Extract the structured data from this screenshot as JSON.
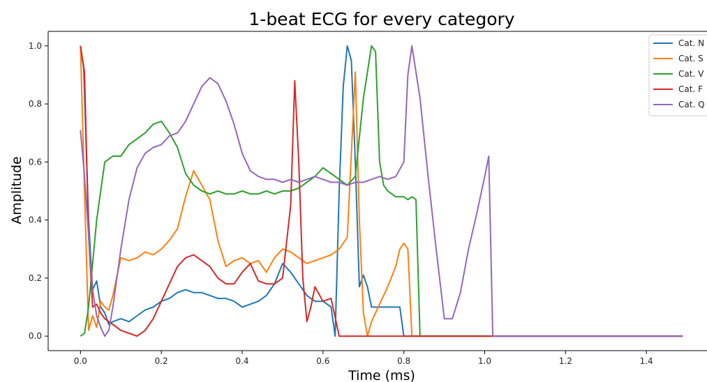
{
  "chart_data": {
    "type": "line",
    "title": "1-beat ECG for every category",
    "xlabel": "Time (ms)",
    "ylabel": "Amplitude",
    "xlim": [
      -0.08,
      1.55
    ],
    "ylim": [
      -0.05,
      1.05
    ],
    "xticks": [
      "0.0",
      "0.2",
      "0.4",
      "0.6",
      "0.8",
      "1.0",
      "1.2",
      "1.4"
    ],
    "yticks": [
      "0.0",
      "0.2",
      "0.4",
      "0.6",
      "0.8",
      "1.0"
    ],
    "grid": false,
    "legend_position": "top-right",
    "series": [
      {
        "name": "Cat. N",
        "color": "#1f77b4",
        "x": [
          0.0,
          0.008,
          0.02,
          0.03,
          0.04,
          0.05,
          0.06,
          0.07,
          0.08,
          0.1,
          0.12,
          0.14,
          0.16,
          0.18,
          0.2,
          0.22,
          0.24,
          0.26,
          0.28,
          0.3,
          0.32,
          0.34,
          0.36,
          0.38,
          0.4,
          0.42,
          0.44,
          0.46,
          0.48,
          0.5,
          0.52,
          0.54,
          0.56,
          0.58,
          0.6,
          0.62,
          0.63,
          0.64,
          0.65,
          0.66,
          0.67,
          0.68,
          0.69,
          0.7,
          0.71,
          0.72,
          0.74,
          0.76,
          0.78,
          0.79,
          0.8,
          0.81,
          1.0,
          1.2,
          1.49
        ],
        "y": [
          1.0,
          0.92,
          0.4,
          0.16,
          0.19,
          0.1,
          0.08,
          0.04,
          0.05,
          0.06,
          0.05,
          0.07,
          0.09,
          0.1,
          0.12,
          0.13,
          0.15,
          0.16,
          0.15,
          0.15,
          0.14,
          0.13,
          0.13,
          0.12,
          0.1,
          0.11,
          0.12,
          0.14,
          0.18,
          0.25,
          0.22,
          0.18,
          0.14,
          0.12,
          0.12,
          0.1,
          0.0,
          0.5,
          0.86,
          1.0,
          0.95,
          0.6,
          0.17,
          0.21,
          0.17,
          0.1,
          0.1,
          0.1,
          0.1,
          0.1,
          0.0,
          0.0,
          0.0,
          0.0,
          0.0
        ]
      },
      {
        "name": "Cat. S",
        "color": "#ff7f0e",
        "x": [
          0.0,
          0.01,
          0.02,
          0.03,
          0.04,
          0.05,
          0.06,
          0.07,
          0.08,
          0.1,
          0.12,
          0.14,
          0.16,
          0.18,
          0.2,
          0.22,
          0.24,
          0.26,
          0.28,
          0.3,
          0.32,
          0.34,
          0.36,
          0.38,
          0.4,
          0.42,
          0.44,
          0.46,
          0.48,
          0.5,
          0.52,
          0.54,
          0.56,
          0.58,
          0.6,
          0.62,
          0.64,
          0.66,
          0.68,
          0.69,
          0.7,
          0.71,
          0.72,
          0.74,
          0.76,
          0.78,
          0.79,
          0.8,
          0.81,
          0.82,
          1.0,
          1.2,
          1.49
        ],
        "y": [
          1.0,
          0.5,
          0.02,
          0.07,
          0.03,
          0.12,
          0.1,
          0.09,
          0.14,
          0.27,
          0.26,
          0.27,
          0.29,
          0.28,
          0.3,
          0.33,
          0.37,
          0.48,
          0.57,
          0.52,
          0.47,
          0.33,
          0.24,
          0.26,
          0.27,
          0.25,
          0.26,
          0.22,
          0.27,
          0.3,
          0.29,
          0.27,
          0.25,
          0.26,
          0.27,
          0.28,
          0.3,
          0.34,
          0.91,
          0.4,
          0.08,
          0.0,
          0.05,
          0.11,
          0.17,
          0.24,
          0.3,
          0.32,
          0.3,
          0.0,
          0.0,
          0.0,
          0.0
        ]
      },
      {
        "name": "Cat. V",
        "color": "#2ca02c",
        "x": [
          0.0,
          0.01,
          0.02,
          0.04,
          0.06,
          0.08,
          0.1,
          0.12,
          0.14,
          0.16,
          0.18,
          0.2,
          0.22,
          0.24,
          0.26,
          0.28,
          0.3,
          0.32,
          0.34,
          0.36,
          0.38,
          0.4,
          0.42,
          0.44,
          0.46,
          0.48,
          0.5,
          0.52,
          0.54,
          0.56,
          0.58,
          0.6,
          0.62,
          0.64,
          0.66,
          0.68,
          0.7,
          0.72,
          0.73,
          0.74,
          0.75,
          0.76,
          0.78,
          0.8,
          0.81,
          0.82,
          0.83,
          0.84,
          1.0,
          1.2,
          1.49
        ],
        "y": [
          0.0,
          0.01,
          0.1,
          0.4,
          0.6,
          0.62,
          0.62,
          0.66,
          0.68,
          0.7,
          0.73,
          0.74,
          0.7,
          0.65,
          0.56,
          0.52,
          0.5,
          0.49,
          0.5,
          0.49,
          0.49,
          0.5,
          0.49,
          0.49,
          0.5,
          0.49,
          0.5,
          0.5,
          0.51,
          0.53,
          0.55,
          0.58,
          0.56,
          0.54,
          0.52,
          0.55,
          0.82,
          1.0,
          0.98,
          0.6,
          0.52,
          0.5,
          0.48,
          0.48,
          0.47,
          0.48,
          0.47,
          0.0,
          0.0,
          0.0,
          0.0
        ]
      },
      {
        "name": "Cat. F",
        "color": "#d62728",
        "x": [
          0.0,
          0.01,
          0.02,
          0.03,
          0.04,
          0.05,
          0.06,
          0.07,
          0.08,
          0.1,
          0.12,
          0.14,
          0.16,
          0.18,
          0.2,
          0.22,
          0.24,
          0.26,
          0.28,
          0.3,
          0.32,
          0.34,
          0.36,
          0.38,
          0.4,
          0.42,
          0.44,
          0.46,
          0.48,
          0.5,
          0.52,
          0.53,
          0.54,
          0.55,
          0.56,
          0.57,
          0.58,
          0.6,
          0.62,
          0.64,
          0.8,
          1.0,
          1.2,
          1.49
        ],
        "y": [
          1.0,
          0.91,
          0.35,
          0.1,
          0.11,
          0.08,
          0.06,
          0.05,
          0.04,
          0.02,
          0.01,
          0.0,
          0.02,
          0.06,
          0.12,
          0.18,
          0.24,
          0.27,
          0.28,
          0.26,
          0.24,
          0.2,
          0.18,
          0.18,
          0.22,
          0.25,
          0.19,
          0.18,
          0.18,
          0.2,
          0.45,
          0.88,
          0.6,
          0.2,
          0.05,
          0.1,
          0.17,
          0.12,
          0.13,
          0.0,
          0.0,
          0.0,
          0.0,
          0.0
        ]
      },
      {
        "name": "Cat. Q",
        "color": "#9467bd",
        "x": [
          0.0,
          0.01,
          0.02,
          0.03,
          0.04,
          0.05,
          0.06,
          0.07,
          0.08,
          0.1,
          0.12,
          0.14,
          0.16,
          0.18,
          0.2,
          0.22,
          0.24,
          0.26,
          0.28,
          0.3,
          0.32,
          0.34,
          0.36,
          0.38,
          0.4,
          0.42,
          0.44,
          0.46,
          0.48,
          0.5,
          0.52,
          0.54,
          0.56,
          0.58,
          0.6,
          0.62,
          0.64,
          0.66,
          0.68,
          0.7,
          0.72,
          0.74,
          0.76,
          0.78,
          0.8,
          0.81,
          0.82,
          0.84,
          0.86,
          0.88,
          0.9,
          0.92,
          0.94,
          0.96,
          0.98,
          1.0,
          1.01,
          1.02,
          1.2,
          1.49
        ],
        "y": [
          0.71,
          0.55,
          0.35,
          0.16,
          0.07,
          0.03,
          0.0,
          0.02,
          0.1,
          0.3,
          0.47,
          0.58,
          0.63,
          0.65,
          0.66,
          0.69,
          0.7,
          0.74,
          0.8,
          0.86,
          0.89,
          0.87,
          0.81,
          0.73,
          0.63,
          0.57,
          0.55,
          0.54,
          0.54,
          0.53,
          0.54,
          0.53,
          0.54,
          0.55,
          0.54,
          0.53,
          0.53,
          0.52,
          0.53,
          0.53,
          0.54,
          0.55,
          0.54,
          0.55,
          0.6,
          0.9,
          1.0,
          0.82,
          0.55,
          0.3,
          0.06,
          0.06,
          0.15,
          0.3,
          0.42,
          0.55,
          0.62,
          0.0,
          0.0,
          0.0
        ]
      }
    ]
  }
}
